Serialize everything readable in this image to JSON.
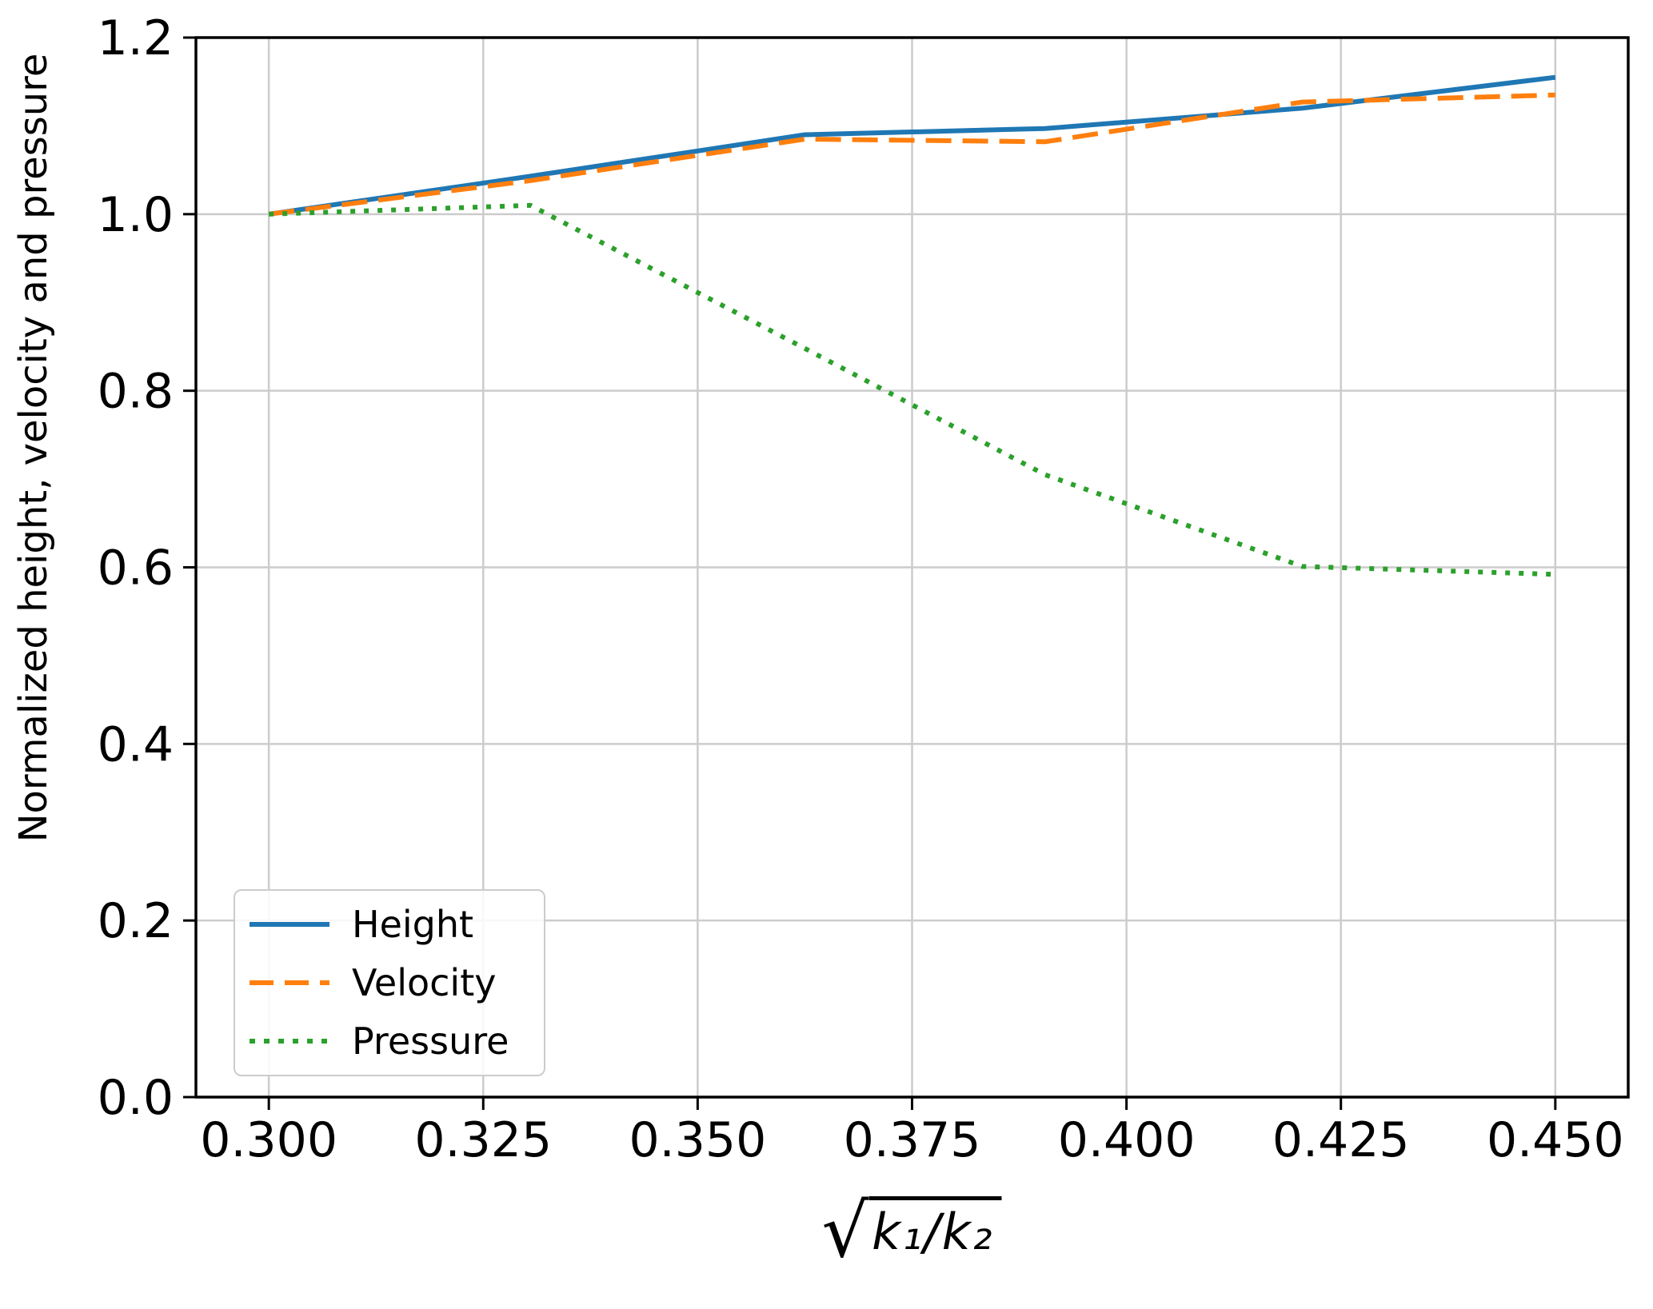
{
  "chart_data": {
    "type": "line",
    "title": "",
    "xlabel": "sqrt(k1/k2)",
    "xlabel_parts": {
      "radical": "√",
      "radicand": "k₁/k₂"
    },
    "ylabel": "Normalized height, velocity and pressure",
    "x": [
      0.3,
      0.3305,
      0.3625,
      0.3905,
      0.4205,
      0.45
    ],
    "series": [
      {
        "name": "Height",
        "color": "#1f77b4",
        "style": "solid",
        "values": [
          1.0,
          1.043,
          1.09,
          1.097,
          1.12,
          1.155
        ]
      },
      {
        "name": "Velocity",
        "color": "#ff7f0e",
        "style": "dashed",
        "values": [
          1.0,
          1.038,
          1.085,
          1.082,
          1.127,
          1.135
        ]
      },
      {
        "name": "Pressure",
        "color": "#2ca02c",
        "style": "dotted",
        "values": [
          1.0,
          1.01,
          0.848,
          0.705,
          0.601,
          0.592
        ]
      }
    ],
    "xlim": [
      0.2915,
      0.4585
    ],
    "ylim": [
      0.0,
      1.2
    ],
    "x_ticks": [
      "0.300",
      "0.325",
      "0.350",
      "0.375",
      "0.400",
      "0.425",
      "0.450"
    ],
    "x_tick_values": [
      0.3,
      0.325,
      0.35,
      0.375,
      0.4,
      0.425,
      0.45
    ],
    "y_ticks": [
      "0.0",
      "0.2",
      "0.4",
      "0.6",
      "0.8",
      "1.0",
      "1.2"
    ],
    "y_tick_values": [
      0.0,
      0.2,
      0.4,
      0.6,
      0.8,
      1.0,
      1.2
    ],
    "grid": true,
    "grid_color": "#cccccc",
    "spine_color": "#000000",
    "legend": {
      "position": "lower left",
      "entries": [
        "Height",
        "Velocity",
        "Pressure"
      ]
    }
  }
}
